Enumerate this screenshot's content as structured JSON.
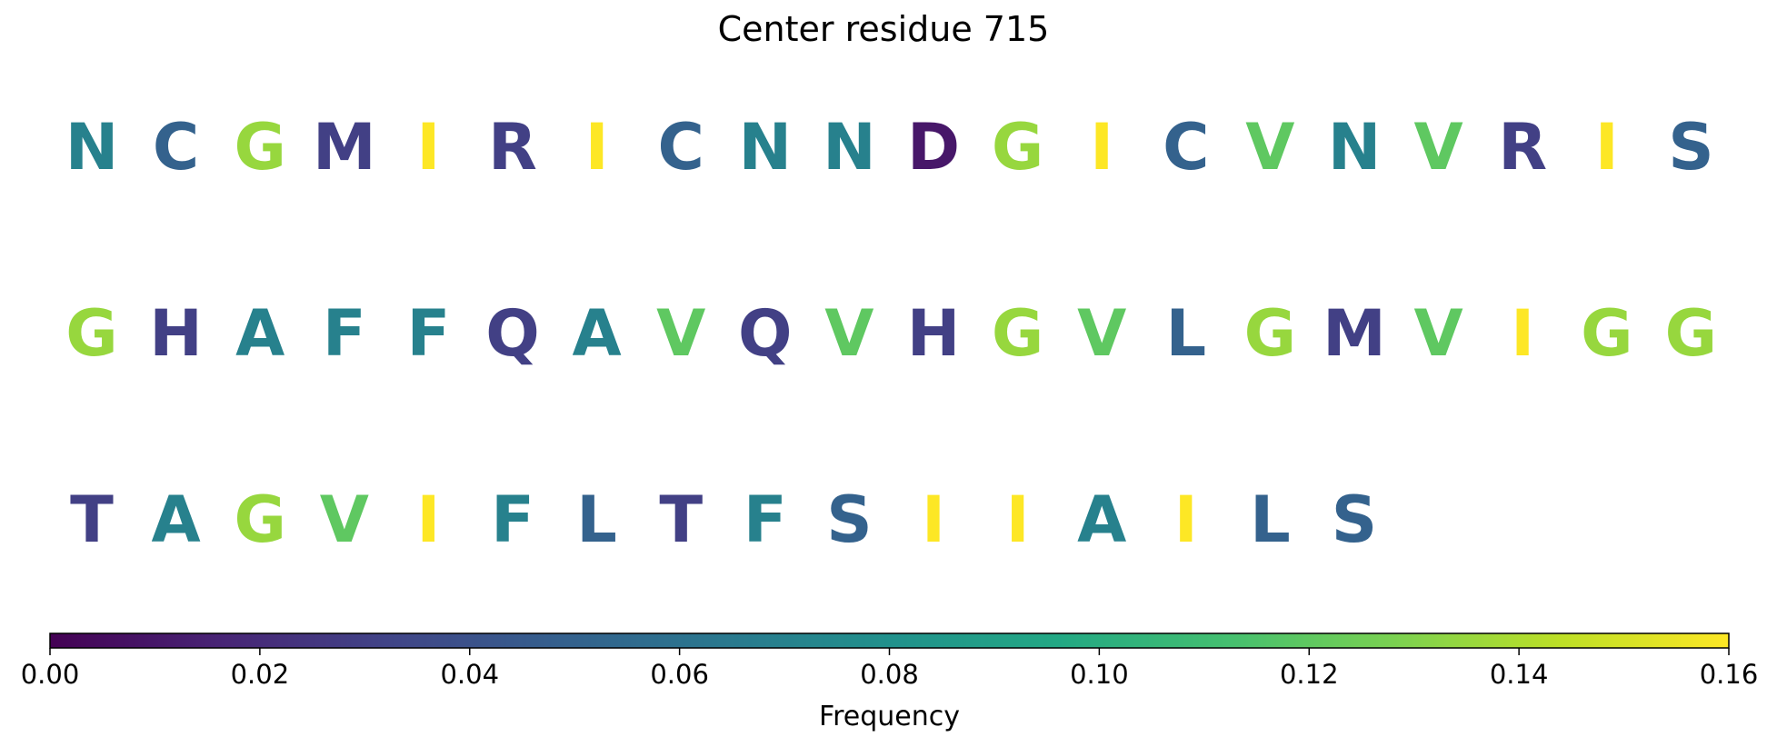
{
  "chart_data": {
    "type": "sequence_logo_grid",
    "title": "Center residue 715",
    "rows": [
      {
        "residues": [
          "N",
          "C",
          "G",
          "M",
          "I",
          "R",
          "I",
          "C",
          "N",
          "N",
          "D",
          "G",
          "I",
          "C",
          "V",
          "N",
          "V",
          "R",
          "I",
          "S"
        ]
      },
      {
        "residues": [
          "G",
          "H",
          "A",
          "F",
          "F",
          "Q",
          "A",
          "V",
          "Q",
          "V",
          "H",
          "G",
          "V",
          "L",
          "G",
          "M",
          "V",
          "I",
          "G",
          "G"
        ]
      },
      {
        "residues": [
          "T",
          "A",
          "G",
          "V",
          "I",
          "F",
          "L",
          "T",
          "F",
          "S",
          "I",
          "I",
          "A",
          "I",
          "L",
          "S"
        ]
      }
    ],
    "residue_frequency": {
      "D": 0.01,
      "R": 0.03,
      "M": 0.03,
      "Q": 0.03,
      "H": 0.03,
      "T": 0.03,
      "C": 0.05,
      "S": 0.05,
      "L": 0.05,
      "N": 0.07,
      "A": 0.07,
      "F": 0.07,
      "V": 0.12,
      "G": 0.135,
      "I": 0.16
    },
    "colorbar": {
      "label": "Frequency",
      "range": [
        0.0,
        0.16
      ],
      "ticks": [
        "0.00",
        "0.02",
        "0.04",
        "0.06",
        "0.08",
        "0.10",
        "0.12",
        "0.14",
        "0.16"
      ],
      "colormap": "viridis"
    }
  }
}
